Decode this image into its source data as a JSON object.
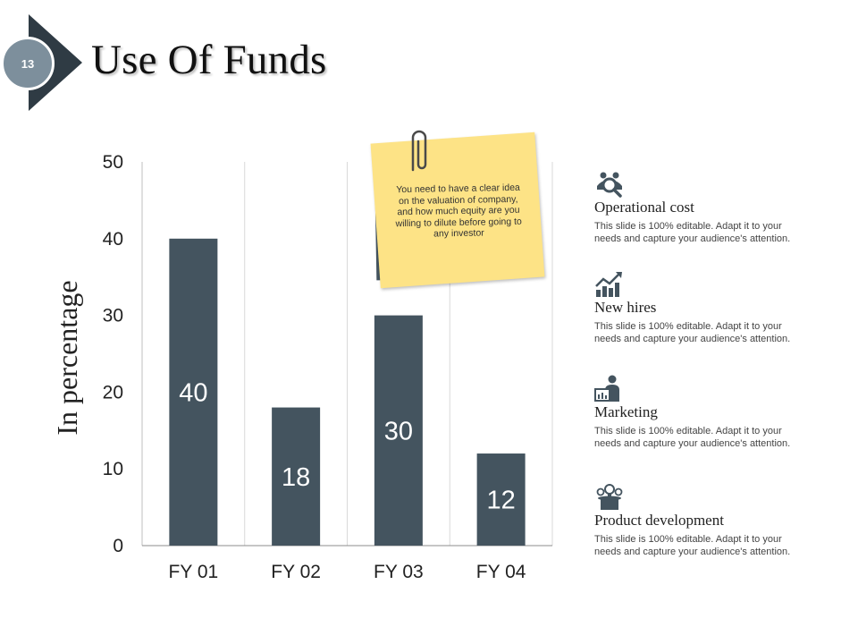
{
  "slide": {
    "number": "13",
    "title": "Use Of Funds"
  },
  "chart_data": {
    "type": "bar",
    "categories": [
      "FY 01",
      "FY 02",
      "FY 03",
      "FY 04"
    ],
    "values": [
      40,
      18,
      30,
      12
    ],
    "data_labels": [
      "40",
      "18",
      "30",
      "12"
    ],
    "ylabel": "In percentage",
    "xlabel": "",
    "ylim": [
      0,
      50
    ],
    "yticks": [
      0,
      10,
      20,
      30,
      40,
      50
    ],
    "grid": "vertical",
    "bar_color": "#44545f",
    "label_color": "#ffffff"
  },
  "note": {
    "text": "You need to have a clear idea on the valuation of company, and how much equity are you willing to dilute before going to any investor",
    "paper_color": "#fde386",
    "backing_color": "#44545f"
  },
  "features": [
    {
      "icon": "team-search-icon",
      "title": "Operational cost",
      "description_lines": [
        "This slide is 100% editable. Adapt it to your",
        "needs and capture your audience's attention."
      ]
    },
    {
      "icon": "growth-chart-icon",
      "title": "New hires",
      "description_lines": [
        "This slide is 100% editable. Adapt it to your",
        "needs and capture your audience's attention."
      ]
    },
    {
      "icon": "presenter-icon",
      "title": "Marketing",
      "description_lines": [
        "This slide is 100% editable. Adapt it to your",
        "needs and capture your audience's attention."
      ]
    },
    {
      "icon": "lightbulb-hat-icon",
      "title": "Product development",
      "description_lines": [
        "This slide is 100% editable. Adapt it to your",
        "needs and capture your audience's attention."
      ]
    }
  ],
  "colors": {
    "badge": "#7d8f9c",
    "badge_arrow": "#2f3b44",
    "accent": "#44545f"
  }
}
